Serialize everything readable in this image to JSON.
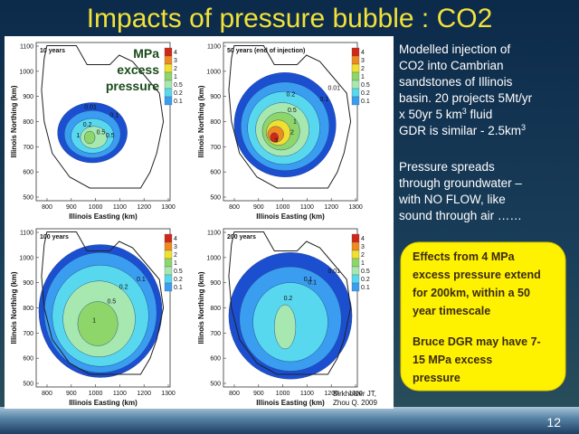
{
  "title": "Impacts of pressure bubble : CO2",
  "axes": {
    "x_label": "Illinois Easting (km)",
    "y_label": "Illinois Northing (km)",
    "x_ticks": [
      800,
      900,
      1000,
      1100,
      1200,
      1300
    ],
    "y_ticks": [
      500,
      600,
      700,
      800,
      900,
      1000,
      1100
    ]
  },
  "legend": [
    "4",
    "3",
    "2",
    "1",
    "0.5",
    "0.2",
    "0.1"
  ],
  "panels": [
    {
      "title": "10 years",
      "contour_labels": [
        "0.01",
        "0.1",
        "0.2",
        "1",
        "0.5",
        "0.5"
      ]
    },
    {
      "title": "50 years (end of injection)",
      "contour_labels": [
        "0.01",
        "0.1",
        "0.2",
        "0.5",
        "1",
        "2",
        "3"
      ]
    },
    {
      "title": "100 years",
      "contour_labels": [
        "0.1",
        "0.2",
        "0.5",
        "1"
      ]
    },
    {
      "title": "200 years",
      "contour_labels": [
        "0.01",
        "0.1",
        "0.2",
        "0.1"
      ]
    }
  ],
  "overlay_label": [
    "MPa",
    "excess",
    "pressure"
  ],
  "text_blocks": [
    {
      "lines": [
        {
          "text": "Modelled injection of"
        },
        {
          "text": "CO2 into Cambrian"
        },
        {
          "text": "sandstones of Illinois"
        },
        {
          "text": "basin. 20 projects 5Mt/yr"
        },
        {
          "text": "x 50yr  5 km",
          "sup": "3",
          "after": " fluid"
        },
        {
          "text": "GDR is similar - 2.5km",
          "sup": "3"
        }
      ]
    },
    {
      "lines": [
        {
          "text": "Pressure spreads"
        },
        {
          "text": "through groundwater –"
        },
        {
          "text": "with NO FLOW, like"
        },
        {
          "text": "sound through air ……"
        }
      ]
    }
  ],
  "callout": [
    [
      "Effects from 4 MPa",
      "excess pressure extend",
      "for 200km, within a 50",
      "year timescale"
    ],
    [
      "Bruce DGR may have 7-",
      "15 MPa excess",
      "pressure"
    ]
  ],
  "citation": [
    "Birkholzer JT,",
    "Zhou Q. 2009"
  ],
  "slide_number": "12"
}
